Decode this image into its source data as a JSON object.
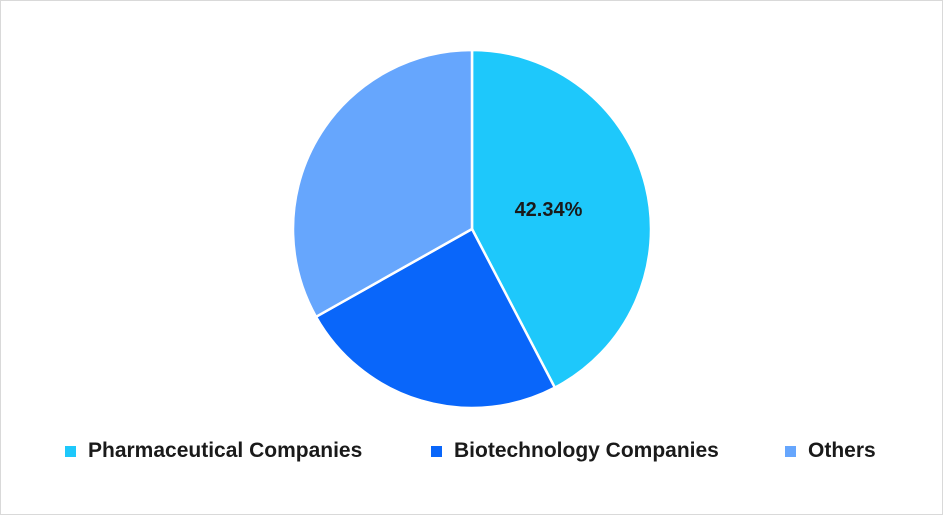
{
  "chart_data": {
    "type": "pie",
    "title": "",
    "series": [
      {
        "labels": [
          "Pharmaceutical Companies",
          "Biotechnology Companies",
          "Others"
        ],
        "values": [
          42.34,
          24.5,
          33.16
        ],
        "colors": [
          "#1ec8fb",
          "#0966fa",
          "#66a6fd"
        ],
        "data_labels": [
          "42.34%",
          "",
          ""
        ]
      }
    ],
    "legend": {
      "placement": "bottom",
      "entries": [
        "Pharmaceutical Companies",
        "Biotechnology Companies",
        "Others"
      ]
    },
    "start_angle": "12 o'clock",
    "direction": "clockwise"
  }
}
